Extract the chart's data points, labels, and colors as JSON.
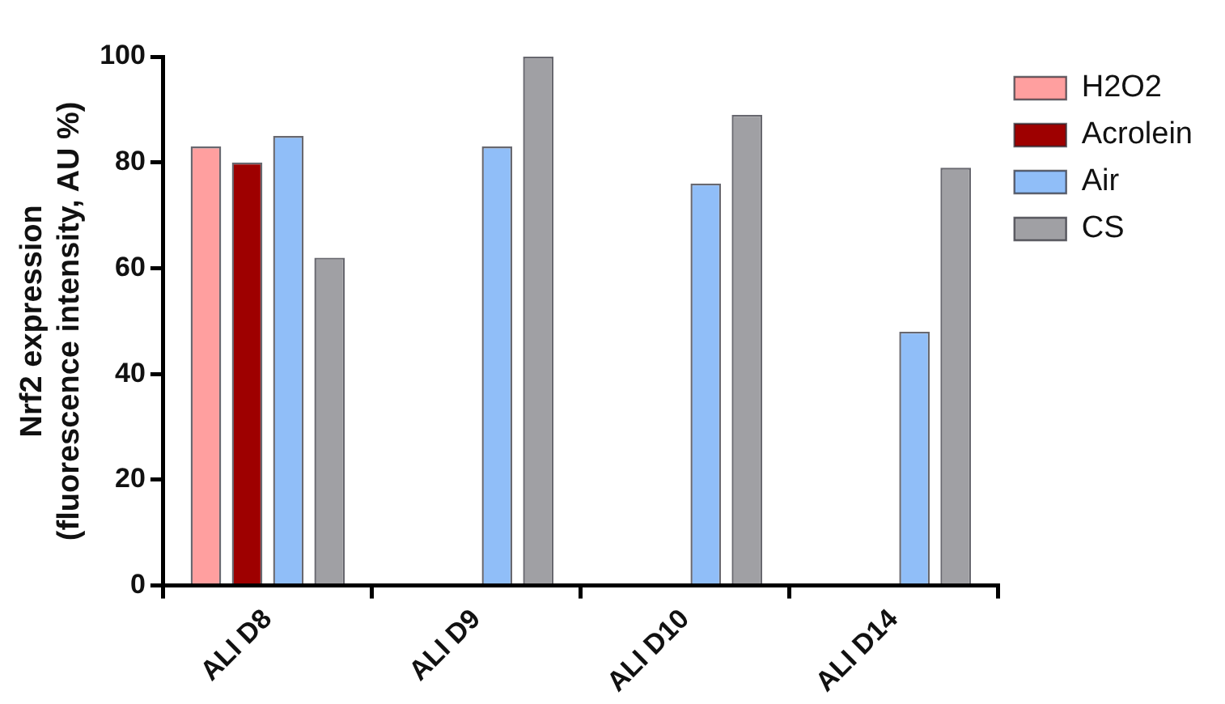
{
  "chart_data": {
    "type": "bar",
    "ylabel": "Nrf2 expression\n(fluorescence intensity, AU %)",
    "categories": [
      "ALI D8",
      "ALI D9",
      "ALI D10",
      "ALI D14"
    ],
    "series": [
      {
        "name": "H2O2",
        "color": "#ff9f9f",
        "values": [
          83,
          null,
          null,
          null
        ]
      },
      {
        "name": "Acrolein",
        "color": "#9e0000",
        "values": [
          80,
          null,
          null,
          null
        ]
      },
      {
        "name": "Air",
        "color": "#90bef8",
        "values": [
          85,
          83,
          76,
          48
        ]
      },
      {
        "name": "CS",
        "color": "#a0a0a4",
        "values": [
          62,
          100,
          89,
          79
        ]
      }
    ],
    "ylim": [
      0,
      100
    ],
    "yticks": [
      0,
      20,
      40,
      60,
      80,
      100
    ],
    "grid": false,
    "legend": "top right"
  }
}
